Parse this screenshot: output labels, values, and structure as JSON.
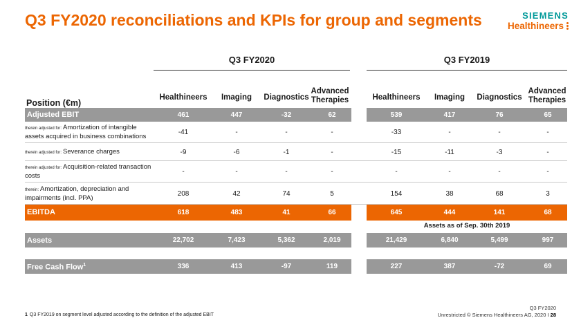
{
  "title": "Q3 FY2020 reconciliations and KPIs for group and segments",
  "logo": {
    "line1": "SIEMENS",
    "line2": "Healthineers"
  },
  "groups": [
    "Q3 FY2020",
    "Q3 FY2019"
  ],
  "position_header": "Position (€m)",
  "columns": [
    "Healthineers",
    "Imaging",
    "Diagnostics",
    "Advanced Therapies"
  ],
  "columns_advanced": [
    "Advanced",
    "Therapies"
  ],
  "rows": [
    {
      "pre": "",
      "label": "Adjusted EBIT",
      "fy20": [
        "461",
        "447",
        "-32",
        "62"
      ],
      "fy19": [
        "539",
        "417",
        "76",
        "65"
      ]
    },
    {
      "pre": "therein adjusted for:",
      "label": "Amortization of intangible assets acquired in business combinations",
      "fy20": [
        "-41",
        "-",
        "-",
        "-"
      ],
      "fy19": [
        "-33",
        "-",
        "-",
        "-"
      ]
    },
    {
      "pre": "therein adjusted for:",
      "label": "Severance charges",
      "fy20": [
        "-9",
        "-6",
        "-1",
        "-"
      ],
      "fy19": [
        "-15",
        "-11",
        "-3",
        "-"
      ]
    },
    {
      "pre": "therein adjusted for:",
      "label": "Acquisition-related transaction costs",
      "fy20": [
        "-",
        "-",
        "-",
        "-"
      ],
      "fy19": [
        "-",
        "-",
        "-",
        "-"
      ]
    },
    {
      "pre": "therein:",
      "label": "Amortization, depreciation and impairments (incl. PPA)",
      "fy20": [
        "208",
        "42",
        "74",
        "5"
      ],
      "fy19": [
        "154",
        "38",
        "68",
        "3"
      ]
    },
    {
      "pre": "",
      "label": "EBITDA",
      "fy20": [
        "618",
        "483",
        "41",
        "66"
      ],
      "fy19": [
        "645",
        "444",
        "141",
        "68"
      ]
    },
    {
      "pre": "",
      "label": "Assets",
      "fy20": [
        "22,702",
        "7,423",
        "5,362",
        "2,019"
      ],
      "fy19": [
        "21,429",
        "6,840",
        "5,499",
        "997"
      ]
    },
    {
      "pre": "",
      "label": "Free Cash Flow",
      "sup": "1",
      "fy20": [
        "336",
        "413",
        "-97",
        "119"
      ],
      "fy19": [
        "227",
        "387",
        "-72",
        "69"
      ]
    }
  ],
  "assets_note": "Assets as of Sep. 30th 2019",
  "footnote": {
    "num": "1",
    "text": "Q3 FY2019 on segment level adjusted according to the definition of the adjusted EBIT"
  },
  "footer": {
    "line1": "Q3 FY2020",
    "line2": "Unrestricted © Siemens Healthineers AG, 2020 I",
    "page": "28"
  },
  "colors": {
    "orange": "#ec6602",
    "grey": "#999999",
    "teal": "#009999"
  }
}
